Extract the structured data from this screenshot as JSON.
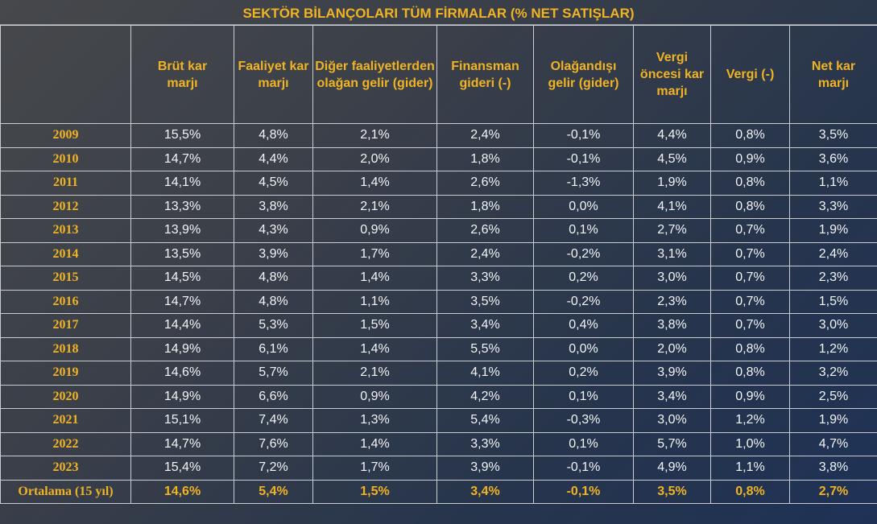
{
  "title": "SEKTÖR BİLANÇOLARI TÜM FİRMALAR (% NET SATIŞLAR)",
  "columns": [
    "",
    "Brüt kar marjı",
    "Faaliyet kar marjı",
    "Diğer faaliyetlerden olağan gelir (gider)",
    "Finansman gideri (-)",
    "Olağandışı gelir (gider)",
    "Vergi öncesi kar marjı",
    "Vergi (-)",
    "Net kar marjı"
  ],
  "rows": [
    [
      "2009",
      "15,5%",
      "4,8%",
      "2,1%",
      "2,4%",
      "-0,1%",
      "4,4%",
      "0,8%",
      "3,5%"
    ],
    [
      "2010",
      "14,7%",
      "4,4%",
      "2,0%",
      "1,8%",
      "-0,1%",
      "4,5%",
      "0,9%",
      "3,6%"
    ],
    [
      "2011",
      "14,1%",
      "4,5%",
      "1,4%",
      "2,6%",
      "-1,3%",
      "1,9%",
      "0,8%",
      "1,1%"
    ],
    [
      "2012",
      "13,3%",
      "3,8%",
      "2,1%",
      "1,8%",
      "0,0%",
      "4,1%",
      "0,8%",
      "3,3%"
    ],
    [
      "2013",
      "13,9%",
      "4,3%",
      "0,9%",
      "2,6%",
      "0,1%",
      "2,7%",
      "0,7%",
      "1,9%"
    ],
    [
      "2014",
      "13,5%",
      "3,9%",
      "1,7%",
      "2,4%",
      "-0,2%",
      "3,1%",
      "0,7%",
      "2,4%"
    ],
    [
      "2015",
      "14,5%",
      "4,8%",
      "1,4%",
      "3,3%",
      "0,2%",
      "3,0%",
      "0,7%",
      "2,3%"
    ],
    [
      "2016",
      "14,7%",
      "4,8%",
      "1,1%",
      "3,5%",
      "-0,2%",
      "2,3%",
      "0,7%",
      "1,5%"
    ],
    [
      "2017",
      "14,4%",
      "5,3%",
      "1,5%",
      "3,4%",
      "0,4%",
      "3,8%",
      "0,7%",
      "3,0%"
    ],
    [
      "2018",
      "14,9%",
      "6,1%",
      "1,4%",
      "5,5%",
      "0,0%",
      "2,0%",
      "0,8%",
      "1,2%"
    ],
    [
      "2019",
      "14,6%",
      "5,7%",
      "2,1%",
      "4,1%",
      "0,2%",
      "3,9%",
      "0,8%",
      "3,2%"
    ],
    [
      "2020",
      "14,9%",
      "6,6%",
      "0,9%",
      "4,2%",
      "0,1%",
      "3,4%",
      "0,9%",
      "2,5%"
    ],
    [
      "2021",
      "15,1%",
      "7,4%",
      "1,3%",
      "5,4%",
      "-0,3%",
      "3,0%",
      "1,2%",
      "1,9%"
    ],
    [
      "2022",
      "14,7%",
      "7,6%",
      "1,4%",
      "3,3%",
      "0,1%",
      "5,7%",
      "1,0%",
      "4,7%"
    ],
    [
      "2023",
      "15,4%",
      "7,2%",
      "1,7%",
      "3,9%",
      "-0,1%",
      "4,9%",
      "1,1%",
      "3,8%"
    ]
  ],
  "average_row": [
    "Ortalama (15 yıl)",
    "14,6%",
    "5,4%",
    "1,5%",
    "3,4%",
    "-0,1%",
    "3,5%",
    "0,8%",
    "2,7%"
  ],
  "colors": {
    "header_text": "#f0b323",
    "value_text": "#f2f4f6",
    "grid": "#c9ccd1"
  }
}
